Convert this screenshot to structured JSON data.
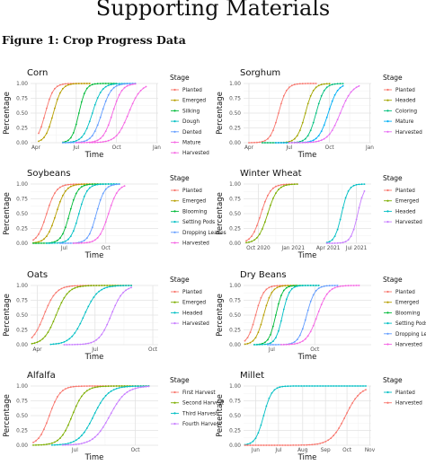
{
  "header": {
    "title": "Supporting Materials",
    "figure_caption": "Figure 1:  Crop Progress Data"
  },
  "colors": {
    "c1": "#F8766D",
    "c2": "#F8766D"
  },
  "chart_data": [
    {
      "type": "line",
      "title": "Corn",
      "xlabel": "Time",
      "ylabel": "Percentage",
      "legend_title": "Stage",
      "xlim": [
        0,
        9.5
      ],
      "ylim": [
        0,
        1
      ],
      "x_ticks": [
        {
          "v": 0.4,
          "label": "Apr"
        },
        {
          "v": 3.4,
          "label": "Jul"
        },
        {
          "v": 6.4,
          "label": "Oct"
        },
        {
          "v": 9.4,
          "label": "Jan"
        }
      ],
      "y_ticks": [
        "0.00",
        "0.25",
        "0.50",
        "0.75",
        "1.00"
      ],
      "series": [
        {
          "name": "Planted",
          "color": "#F8766D",
          "center": 1.1,
          "width": 0.3,
          "start": 0.6,
          "end": 4.5
        },
        {
          "name": "Emerged",
          "color": "#B79F00",
          "center": 1.7,
          "width": 0.3,
          "start": 0.6,
          "end": 4.5
        },
        {
          "name": "Silking",
          "color": "#00BA38",
          "center": 3.6,
          "width": 0.25,
          "start": 2.4,
          "end": 6.4
        },
        {
          "name": "Dough",
          "color": "#00BFC4",
          "center": 4.6,
          "width": 0.35,
          "start": 2.4,
          "end": 7.9
        },
        {
          "name": "Dented",
          "color": "#619CFF",
          "center": 5.3,
          "width": 0.35,
          "start": 2.4,
          "end": 7.9
        },
        {
          "name": "Mature",
          "color": "#F564E3",
          "center": 6.1,
          "width": 0.35,
          "start": 3.4,
          "end": 7.9
        },
        {
          "name": "Harvested",
          "color": "#F564E3",
          "center": 7.3,
          "width": 0.45,
          "start": 4.4,
          "end": 8.7
        }
      ]
    },
    {
      "type": "line",
      "title": "Sorghum",
      "xlabel": "Time",
      "ylabel": "Percentage",
      "legend_title": "Stage",
      "xlim": [
        0,
        9.5
      ],
      "ylim": [
        0,
        1
      ],
      "x_ticks": [
        {
          "v": 0.4,
          "label": "Apr"
        },
        {
          "v": 3.4,
          "label": "Jul"
        },
        {
          "v": 6.4,
          "label": "Oct"
        },
        {
          "v": 9.4,
          "label": "Jan"
        }
      ],
      "y_ticks": [
        "0.00",
        "0.25",
        "0.50",
        "0.75",
        "1.00"
      ],
      "series": [
        {
          "name": "Planted",
          "color": "#F8766D",
          "center": 2.6,
          "width": 0.3,
          "start": 0.4,
          "end": 5.4
        },
        {
          "name": "Headed",
          "color": "#A3A500",
          "center": 4.6,
          "width": 0.3,
          "start": 1.4,
          "end": 6.4
        },
        {
          "name": "Coloring",
          "color": "#00BF7D",
          "center": 5.4,
          "width": 0.3,
          "start": 1.4,
          "end": 7.4
        },
        {
          "name": "Mature",
          "color": "#00B0F6",
          "center": 6.3,
          "width": 0.35,
          "start": 2.4,
          "end": 7.4
        },
        {
          "name": "Harvested",
          "color": "#E76BF3",
          "center": 7.2,
          "width": 0.45,
          "start": 3.4,
          "end": 8.6
        }
      ]
    },
    {
      "type": "line",
      "title": "Soybeans",
      "xlabel": "Time",
      "ylabel": "Percentage",
      "legend_title": "Stage",
      "xlim": [
        0,
        9.5
      ],
      "ylim": [
        0,
        1
      ],
      "x_ticks": [
        {
          "v": 2.5,
          "label": "Jul"
        },
        {
          "v": 5.6,
          "label": "Oct"
        }
      ],
      "y_ticks": [
        "0.00",
        "0.25",
        "0.50",
        "0.75",
        "1.00"
      ],
      "series": [
        {
          "name": "Planted",
          "color": "#F8766D",
          "center": 1.2,
          "width": 0.35,
          "start": 0.2,
          "end": 5.0
        },
        {
          "name": "Emerged",
          "color": "#B79F00",
          "center": 1.9,
          "width": 0.35,
          "start": 0.2,
          "end": 5.0
        },
        {
          "name": "Blooming",
          "color": "#00BA38",
          "center": 2.9,
          "width": 0.3,
          "start": 0.2,
          "end": 6.6
        },
        {
          "name": "Setting Pods",
          "color": "#00BFC4",
          "center": 3.6,
          "width": 0.3,
          "start": 1.2,
          "end": 6.6
        },
        {
          "name": "Dropping Leaves",
          "color": "#619CFF",
          "center": 4.9,
          "width": 0.3,
          "start": 2.2,
          "end": 6.6
        },
        {
          "name": "Harvested",
          "color": "#F564E3",
          "center": 5.8,
          "width": 0.35,
          "start": 3.2,
          "end": 7.0
        }
      ]
    },
    {
      "type": "line",
      "title": "Winter Wheat",
      "xlabel": "Time",
      "ylabel": "Percentage",
      "legend_title": "Stage",
      "xlim": [
        0,
        9.5
      ],
      "ylim": [
        0,
        1
      ],
      "x_ticks": [
        {
          "v": 1.1,
          "label": "Oct 2020"
        },
        {
          "v": 3.7,
          "label": "Jan 2021"
        },
        {
          "v": 6.3,
          "label": "Apr 2021"
        },
        {
          "v": 8.4,
          "label": "Jul 2021"
        }
      ],
      "y_ticks": [
        "0.00",
        "0.25",
        "0.50",
        "0.75",
        "1.00"
      ],
      "series": [
        {
          "name": "Planted",
          "color": "#F8766D",
          "center": 1.3,
          "width": 0.35,
          "start": 0.2,
          "end": 4.0
        },
        {
          "name": "Emerged",
          "color": "#7CAE00",
          "center": 1.8,
          "width": 0.35,
          "start": 0.2,
          "end": 4.0
        },
        {
          "name": "Headed",
          "color": "#00BFC4",
          "center": 7.3,
          "width": 0.25,
          "start": 6.2,
          "end": 9.0
        },
        {
          "name": "Harvested",
          "color": "#C77CFF",
          "center": 8.5,
          "width": 0.25,
          "start": 6.2,
          "end": 9.0
        }
      ]
    },
    {
      "type": "line",
      "title": "Oats",
      "xlabel": "Time",
      "ylabel": "Percentage",
      "legend_title": "Stage",
      "xlim": [
        0,
        9.5
      ],
      "ylim": [
        0,
        1
      ],
      "x_ticks": [
        {
          "v": 0.5,
          "label": "Apr"
        },
        {
          "v": 4.8,
          "label": "Jul"
        },
        {
          "v": 9.1,
          "label": "Oct"
        }
      ],
      "y_ticks": [
        "0.00",
        "0.25",
        "0.50",
        "0.75",
        "1.00"
      ],
      "series": [
        {
          "name": "Planted",
          "color": "#F8766D",
          "center": 1.0,
          "width": 0.45,
          "start": 0.1,
          "end": 7.5
        },
        {
          "name": "Emerged",
          "color": "#7CAE00",
          "center": 1.9,
          "width": 0.45,
          "start": 0.1,
          "end": 7.5
        },
        {
          "name": "Headed",
          "color": "#00BFC4",
          "center": 4.0,
          "width": 0.5,
          "start": 1.5,
          "end": 7.5
        },
        {
          "name": "Harvested",
          "color": "#C77CFF",
          "center": 6.0,
          "width": 0.45,
          "start": 2.5,
          "end": 7.5
        }
      ]
    },
    {
      "type": "line",
      "title": "Dry Beans",
      "xlabel": "Time",
      "ylabel": "Percentage",
      "legend_title": "Stage",
      "xlim": [
        0,
        9.5
      ],
      "ylim": [
        0,
        1
      ],
      "x_ticks": [
        {
          "v": 2.1,
          "label": "Jul"
        },
        {
          "v": 5.3,
          "label": "Oct"
        }
      ],
      "y_ticks": [
        "0.00",
        "0.25",
        "0.50",
        "0.75",
        "1.00"
      ],
      "series": [
        {
          "name": "Planted",
          "color": "#F8766D",
          "center": 0.9,
          "width": 0.3,
          "start": 0.1,
          "end": 4.0
        },
        {
          "name": "Emerged",
          "color": "#B79F00",
          "center": 1.5,
          "width": 0.3,
          "start": 0.1,
          "end": 4.0
        },
        {
          "name": "Blooming",
          "color": "#00BA38",
          "center": 2.4,
          "width": 0.25,
          "start": 0.8,
          "end": 5.6
        },
        {
          "name": "Setting Pods",
          "color": "#00BFC4",
          "center": 2.9,
          "width": 0.25,
          "start": 0.8,
          "end": 5.6
        },
        {
          "name": "Dropping Leaves",
          "color": "#619CFF",
          "center": 4.7,
          "width": 0.3,
          "start": 1.8,
          "end": 7.0
        },
        {
          "name": "Harvested",
          "color": "#F564E3",
          "center": 5.5,
          "width": 0.4,
          "start": 2.8,
          "end": 8.6
        }
      ]
    },
    {
      "type": "line",
      "title": "Alfalfa",
      "xlabel": "Time",
      "ylabel": "Percentage",
      "legend_title": "Stage",
      "xlim": [
        0,
        9.5
      ],
      "ylim": [
        0,
        1
      ],
      "x_ticks": [
        {
          "v": 3.3,
          "label": "Jul"
        },
        {
          "v": 7.8,
          "label": "Oct"
        }
      ],
      "y_ticks": [
        "0.00",
        "0.25",
        "0.50",
        "0.75",
        "1.00"
      ],
      "series": [
        {
          "name": "First Harvest",
          "color": "#F8766D",
          "center": 1.4,
          "width": 0.4,
          "start": 0.2,
          "end": 8.8
        },
        {
          "name": "Second Harvest",
          "color": "#7CAE00",
          "center": 3.1,
          "width": 0.45,
          "start": 0.2,
          "end": 8.8
        },
        {
          "name": "Third Harvest",
          "color": "#00BFC4",
          "center": 4.7,
          "width": 0.55,
          "start": 1.6,
          "end": 8.8
        },
        {
          "name": "Fourth Harvest",
          "color": "#C77CFF",
          "center": 5.9,
          "width": 0.6,
          "start": 2.4,
          "end": 8.8
        }
      ]
    },
    {
      "type": "line",
      "title": "Millet",
      "xlabel": "Time",
      "ylabel": "Percentage",
      "legend_title": "Stage",
      "xlim": [
        0,
        9.5
      ],
      "ylim": [
        0,
        1
      ],
      "x_ticks": [
        {
          "v": 0.9,
          "label": "Jun"
        },
        {
          "v": 2.6,
          "label": "Jul"
        },
        {
          "v": 4.4,
          "label": "Aug"
        },
        {
          "v": 6.1,
          "label": "Sep"
        },
        {
          "v": 7.7,
          "label": "Oct"
        },
        {
          "v": 9.4,
          "label": "Nov"
        }
      ],
      "y_ticks": [
        "0.00",
        "0.25",
        "0.50",
        "0.75",
        "1.00"
      ],
      "series": [
        {
          "name": "Planted",
          "color": "#00BFC4",
          "center": 1.5,
          "width": 0.3,
          "start": 0.1,
          "end": 9.2
        },
        {
          "name": "Harvested",
          "color": "#F8766D",
          "center": 7.6,
          "width": 0.55,
          "start": 0.1,
          "end": 9.2
        }
      ]
    }
  ]
}
